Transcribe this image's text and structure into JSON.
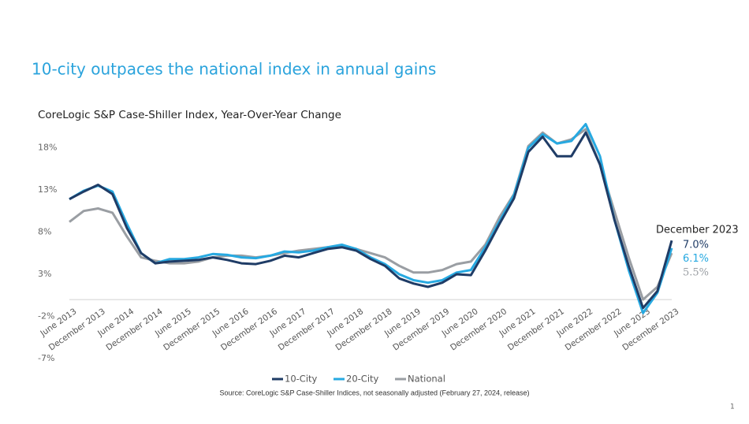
{
  "chart_data": {
    "type": "line",
    "title": "10-city outpaces the national index in annual gains",
    "subtitle": "CoreLogic S&P Case-Shiller Index, Year-Over-Year Change",
    "source": "Source: CoreLogic S&P Case-Shiller Indices, not seasonally adjusted (February 27, 2024, release)",
    "end_label": "December 2023",
    "categories": [
      "June 2013",
      null,
      "December 2013",
      null,
      "June 2014",
      null,
      "December 2014",
      null,
      "June 2015",
      null,
      "December 2015",
      null,
      "June 2016",
      null,
      "December 2016",
      null,
      "June 2017",
      null,
      "December 2017",
      null,
      "June 2018",
      null,
      "December 2018",
      null,
      "June 2019",
      null,
      "December 2019",
      null,
      "June 2020",
      null,
      "December 2020",
      null,
      "June 2021",
      null,
      "December 2021",
      null,
      "June 2022",
      null,
      "December 2022",
      null,
      "June 2023",
      null,
      "December 2023"
    ],
    "series": [
      {
        "name": "10-City",
        "color": "#1f3c66",
        "values": [
          11.9,
          12.8,
          13.6,
          12.5,
          8.5,
          5.5,
          4.3,
          4.5,
          4.6,
          4.7,
          5.0,
          4.7,
          4.3,
          4.2,
          4.6,
          5.2,
          5.0,
          5.5,
          6.0,
          6.2,
          5.8,
          4.8,
          4.0,
          2.5,
          1.9,
          1.5,
          2.0,
          3.0,
          2.9,
          5.8,
          9.0,
          12.0,
          17.5,
          19.3,
          17.0,
          17.0,
          19.8,
          16.0,
          9.5,
          4.0,
          -1.0,
          1.0,
          7.0
        ],
        "value_labels": [
          null,
          null,
          null,
          null,
          null,
          null,
          null,
          null,
          null,
          null,
          null,
          null,
          null,
          null,
          null,
          null,
          null,
          null,
          null,
          null,
          null,
          null,
          null,
          null,
          null,
          null,
          null,
          null,
          null,
          null,
          null,
          null,
          null,
          null,
          null,
          null,
          null,
          null,
          null,
          null,
          null,
          null,
          "7.0%"
        ]
      },
      {
        "name": "20-City",
        "color": "#27a9e1",
        "values": [
          11.9,
          12.9,
          13.5,
          12.8,
          9.0,
          5.5,
          4.3,
          4.8,
          4.8,
          5.0,
          5.4,
          5.3,
          5.0,
          4.9,
          5.2,
          5.7,
          5.6,
          5.8,
          6.2,
          6.5,
          6.0,
          5.0,
          4.2,
          3.0,
          2.3,
          2.0,
          2.3,
          3.2,
          3.5,
          6.2,
          9.3,
          12.4,
          18.0,
          19.6,
          18.5,
          18.8,
          20.8,
          17.0,
          9.5,
          3.5,
          -1.6,
          0.8,
          6.1
        ],
        "value_labels": [
          null,
          null,
          null,
          null,
          null,
          null,
          null,
          null,
          null,
          null,
          null,
          null,
          null,
          null,
          null,
          null,
          null,
          null,
          null,
          null,
          null,
          null,
          null,
          null,
          null,
          null,
          null,
          null,
          null,
          null,
          null,
          null,
          null,
          null,
          null,
          null,
          null,
          null,
          null,
          null,
          null,
          null,
          "6.1%"
        ]
      },
      {
        "name": "National",
        "color": "#9a9ea3",
        "values": [
          9.2,
          10.5,
          10.8,
          10.3,
          7.5,
          5.0,
          4.6,
          4.3,
          4.3,
          4.5,
          5.0,
          5.2,
          5.2,
          5.0,
          5.2,
          5.5,
          5.8,
          6.0,
          6.2,
          6.3,
          6.0,
          5.5,
          5.0,
          4.0,
          3.2,
          3.2,
          3.5,
          4.2,
          4.5,
          6.5,
          9.8,
          12.5,
          18.2,
          19.8,
          18.5,
          19.0,
          20.2,
          16.0,
          10.5,
          5.0,
          0.0,
          1.5,
          5.5
        ],
        "value_labels": [
          null,
          null,
          null,
          null,
          null,
          null,
          null,
          null,
          null,
          null,
          null,
          null,
          null,
          null,
          null,
          null,
          null,
          null,
          null,
          null,
          null,
          null,
          null,
          null,
          null,
          null,
          null,
          null,
          null,
          null,
          null,
          null,
          null,
          null,
          null,
          null,
          null,
          null,
          null,
          null,
          null,
          null,
          "5.5%"
        ]
      }
    ],
    "ylim": [
      -7,
      21.5
    ],
    "yticks": [
      {
        "value": -7,
        "label": "-7%"
      },
      {
        "value": -2,
        "label": "-2%"
      },
      {
        "value": 3,
        "label": "3%"
      },
      {
        "value": 8,
        "label": "8%"
      },
      {
        "value": 13,
        "label": "13%"
      },
      {
        "value": 18,
        "label": "18%"
      }
    ],
    "grid": false
  },
  "page_number": "1"
}
